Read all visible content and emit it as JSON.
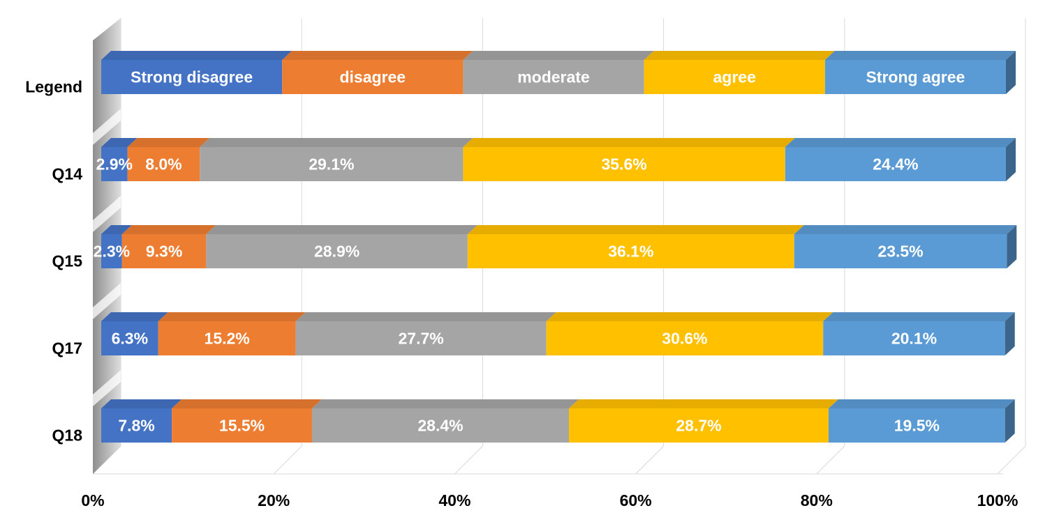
{
  "chart_data": {
    "type": "bar",
    "orientation": "horizontal",
    "stacked": "percent",
    "three_d": true,
    "categories": [
      "Legend",
      "Q14",
      "Q15",
      "Q17",
      "Q18"
    ],
    "series": [
      {
        "name": "Strong disagree",
        "color": "#4472C4",
        "values": [
          20,
          2.9,
          2.3,
          6.3,
          7.8
        ],
        "labels": [
          "Strong disagree",
          "2.9%",
          "2.3%",
          "6.3%",
          "7.8%"
        ]
      },
      {
        "name": "disagree",
        "color": "#ED7D31",
        "values": [
          20,
          8.0,
          9.3,
          15.2,
          15.5
        ],
        "labels": [
          "disagree",
          "8.0%",
          "9.3%",
          "15.2%",
          "15.5%"
        ]
      },
      {
        "name": "moderate",
        "color": "#A5A5A5",
        "values": [
          20,
          29.1,
          28.9,
          27.7,
          28.4
        ],
        "labels": [
          "moderate",
          "29.1%",
          "28.9%",
          "27.7%",
          "28.4%"
        ]
      },
      {
        "name": "agree",
        "color": "#FFC000",
        "values": [
          20,
          35.6,
          36.1,
          30.6,
          28.7
        ],
        "labels": [
          "agree",
          "35.6%",
          "36.1%",
          "30.6%",
          "28.7%"
        ]
      },
      {
        "name": "Strong agree",
        "color": "#5B9BD5",
        "values": [
          20,
          24.4,
          23.5,
          20.1,
          19.5
        ],
        "labels": [
          "Strong agree",
          "24.4%",
          "23.5%",
          "20.1%",
          "19.5%"
        ]
      }
    ],
    "x_ticks": [
      "0%",
      "20%",
      "40%",
      "60%",
      "80%",
      "100%"
    ],
    "xlim": [
      0,
      100
    ],
    "grid": true,
    "legend": "first-row"
  }
}
